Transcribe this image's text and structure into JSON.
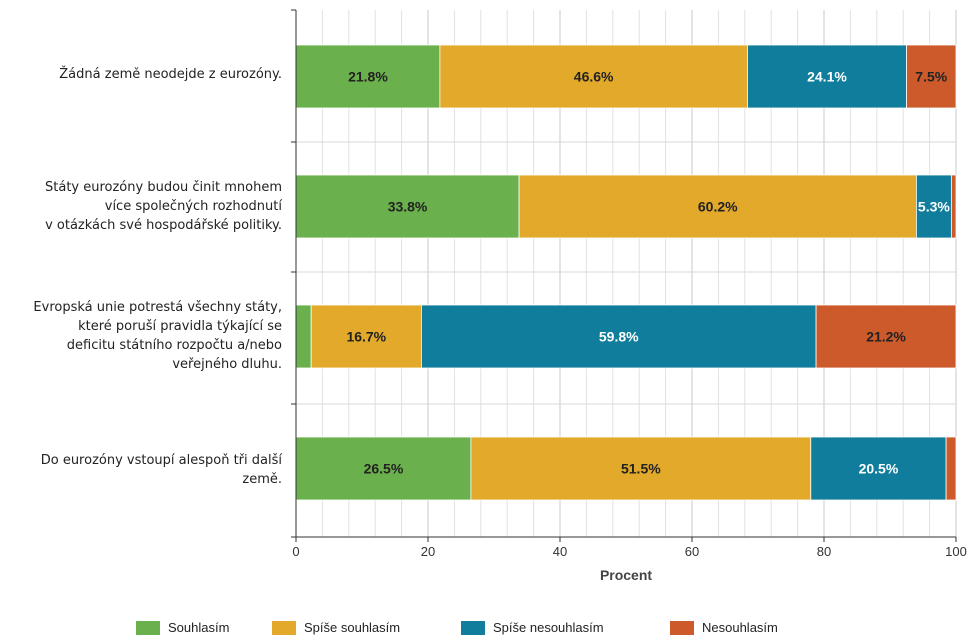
{
  "chart_data": {
    "type": "bar",
    "orientation": "horizontal",
    "stacked": true,
    "categories": [
      "Žádná země neodejde z eurozóny.",
      "Státy eurozóny budou činit mnohem více společných rozhodnutí v otázkách své hospodářské politiky.",
      "Evropská unie potrestá všechny státy, které poruší pravidla týkající se deficitu státního rozpočtu a/nebo veřejného dluhu.",
      "Do eurozóny vstoupí alespoň tři další země."
    ],
    "category_lines": [
      [
        "Žádná země neodejde z eurozóny."
      ],
      [
        "Státy eurozóny budou činit mnohem",
        "více společných rozhodnutí",
        "v otázkách své hospodářské politiky."
      ],
      [
        "Evropská unie potrestá všechny státy,",
        "které poruší pravidla týkající se",
        "deficitu státního rozpočtu a/nebo",
        "veřejného dluhu."
      ],
      [
        "Do eurozóny vstoupí alespoň tři další",
        "země."
      ]
    ],
    "series": [
      {
        "name": "Souhlasím",
        "color": "#6ab04c",
        "values": [
          21.8,
          33.8,
          2.3,
          26.5
        ],
        "labels": [
          "21.8%",
          "33.8%",
          "",
          "26.5%"
        ],
        "label_color": "#222222"
      },
      {
        "name": "Spíše souhlasím",
        "color": "#e2a92b",
        "values": [
          46.6,
          60.2,
          16.7,
          51.5
        ],
        "labels": [
          "46.6%",
          "60.2%",
          "16.7%",
          "51.5%"
        ],
        "label_color": "#222222"
      },
      {
        "name": "Spíše nesouhlasím",
        "color": "#0f7d9b",
        "values": [
          24.1,
          5.3,
          59.8,
          20.5
        ],
        "labels": [
          "24.1%",
          "5.3%",
          "59.8%",
          "20.5%"
        ],
        "label_color": "#ffffff"
      },
      {
        "name": "Nesouhlasím",
        "color": "#cd5a2a",
        "values": [
          7.5,
          0.7,
          21.2,
          1.5
        ],
        "labels": [
          "7.5%",
          "",
          "21.2%",
          ""
        ],
        "label_color": "#222222"
      }
    ],
    "xlabel": "Procent",
    "xlim": [
      0,
      100
    ],
    "xticks": [
      0,
      20,
      40,
      60,
      80,
      100
    ],
    "grid": true,
    "legend_position": "bottom"
  }
}
